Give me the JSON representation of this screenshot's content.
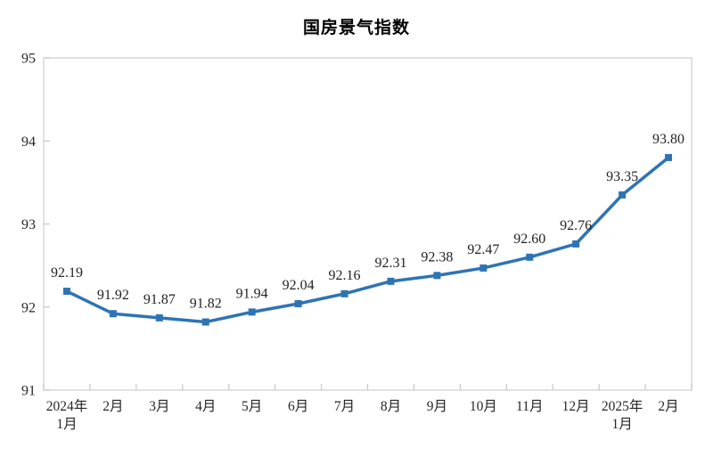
{
  "page": {
    "background": "#ffffff"
  },
  "chart_data": {
    "type": "line",
    "title": "国房景气指数",
    "categories": [
      "2024年\n1月",
      "2月",
      "3月",
      "4月",
      "5月",
      "6月",
      "7月",
      "8月",
      "9月",
      "10月",
      "11月",
      "12月",
      "2025年\n1月",
      "2月"
    ],
    "values": [
      92.19,
      91.92,
      91.87,
      91.82,
      91.94,
      92.04,
      92.16,
      92.31,
      92.38,
      92.47,
      92.6,
      92.76,
      93.35,
      93.8
    ],
    "data_labels": [
      "92.19",
      "91.92",
      "91.87",
      "91.82",
      "91.94",
      "92.04",
      "92.16",
      "92.31",
      "92.38",
      "92.47",
      "92.60",
      "92.76",
      "93.35",
      "93.80"
    ],
    "series_name": "国房景气指数",
    "xlabel": "",
    "ylabel": "",
    "ylim": [
      91,
      95
    ],
    "yticks": [
      "91",
      "92",
      "93",
      "94",
      "95"
    ],
    "grid": false,
    "legend": "none",
    "marker": "square",
    "colors": {
      "line": "#2E74B5",
      "marker": "#2E74B5",
      "data_label": "#222222",
      "axis_label": "#262626",
      "axis_border": "#D9D9D9",
      "tick": "#C9C9C9",
      "title": "#000000"
    }
  }
}
